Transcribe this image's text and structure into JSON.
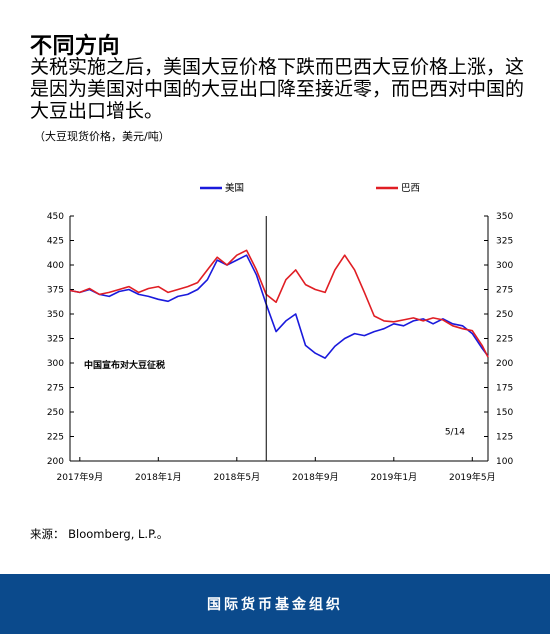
{
  "header": {
    "title": "不同方向",
    "subtitle": "关税实施之后，美国大豆价格下跌而巴西大豆价格上涨，这是因为美国对中国的大豆出口降至接近零，而巴西对中国的大豆出口增长。",
    "unit": "（大豆现货价格，美元/吨）"
  },
  "source": "来源： Bloomberg, L.P.。",
  "footer": {
    "label": "国际货币基金组织"
  },
  "chart_data": {
    "type": "line",
    "x_tick_labels": [
      "2017年9月",
      "2018年1月",
      "2018年5月",
      "2018年9月",
      "2019年1月",
      "2019年5月"
    ],
    "x_tick_months": [
      0,
      4,
      8,
      12,
      16,
      20
    ],
    "x_range_months": [
      -0.5,
      20.8
    ],
    "y_left": {
      "min": 200,
      "max": 450,
      "ticks": [
        200,
        225,
        250,
        275,
        300,
        325,
        350,
        375,
        400,
        425,
        450
      ]
    },
    "y_right": {
      "min": 100,
      "max": 350,
      "ticks": [
        100,
        125,
        150,
        175,
        200,
        225,
        250,
        275,
        300,
        325,
        350
      ]
    },
    "grid": false,
    "legend_position": "top",
    "annotations": {
      "event_label": "中国宣布对大豆征税",
      "event_month": 9.5,
      "end_label": "5/14"
    },
    "series": [
      {
        "name": "美国",
        "color": "#1a1adc",
        "axis": "right",
        "x": [
          -0.5,
          0,
          0.5,
          1,
          1.5,
          2,
          2.5,
          3,
          3.5,
          4,
          4.5,
          5,
          5.5,
          6,
          6.5,
          7,
          7.5,
          8,
          8.5,
          9,
          9.5,
          10,
          10.5,
          11,
          11.5,
          12,
          12.5,
          13,
          13.5,
          14,
          14.5,
          15,
          15.5,
          16,
          16.5,
          17,
          17.5,
          18,
          18.5,
          19,
          19.5,
          20,
          20.5,
          20.8
        ],
        "values": [
          274,
          272,
          275,
          270,
          268,
          273,
          275,
          270,
          268,
          265,
          263,
          268,
          270,
          275,
          285,
          305,
          300,
          305,
          310,
          290,
          260,
          232,
          243,
          250,
          218,
          210,
          205,
          217,
          225,
          230,
          228,
          232,
          235,
          240,
          238,
          243,
          245,
          240,
          245,
          240,
          238,
          230,
          215,
          207
        ]
      },
      {
        "name": "巴西",
        "color": "#e01e24",
        "axis": "left",
        "x": [
          -0.5,
          0,
          0.5,
          1,
          1.5,
          2,
          2.5,
          3,
          3.5,
          4,
          4.5,
          5,
          5.5,
          6,
          6.5,
          7,
          7.5,
          8,
          8.5,
          9,
          9.5,
          10,
          10.5,
          11,
          11.5,
          12,
          12.5,
          13,
          13.5,
          14,
          14.5,
          15,
          15.5,
          16,
          16.5,
          17,
          17.5,
          18,
          18.5,
          19,
          19.5,
          20,
          20.5,
          20.8
        ],
        "values": [
          374,
          372,
          376,
          370,
          372,
          375,
          378,
          372,
          376,
          378,
          372,
          375,
          378,
          382,
          395,
          408,
          400,
          410,
          415,
          395,
          370,
          362,
          385,
          395,
          380,
          375,
          372,
          395,
          410,
          395,
          372,
          348,
          343,
          342,
          344,
          346,
          343,
          346,
          344,
          338,
          335,
          333,
          318,
          306
        ]
      }
    ]
  }
}
